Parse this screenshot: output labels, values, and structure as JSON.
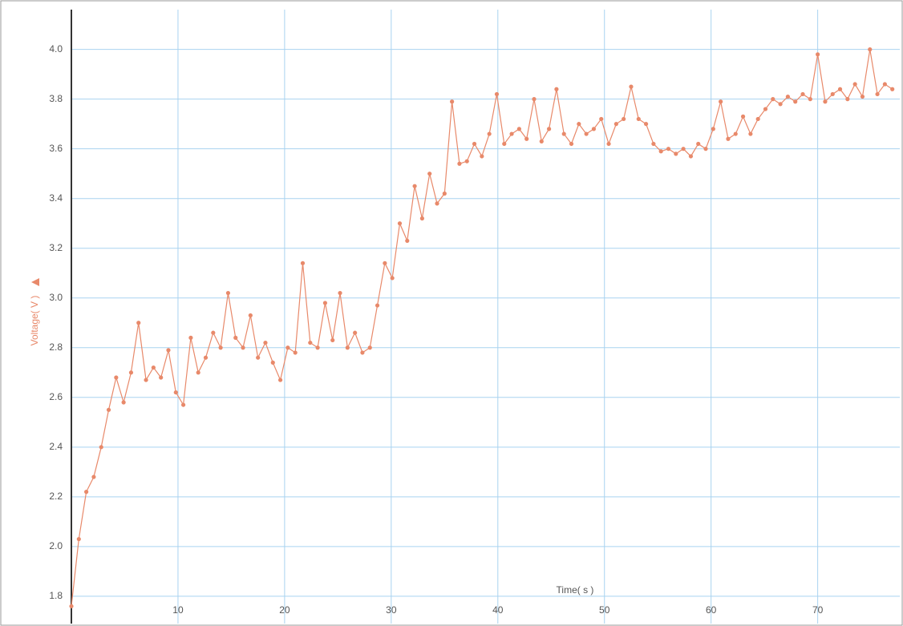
{
  "chart_data": {
    "type": "line",
    "x_label": "Time( s )",
    "y_label": "Voltage( V )",
    "color": "#e8896a",
    "grid": true,
    "xlim": [
      0,
      77.7
    ],
    "ylim": [
      1.69,
      4.16
    ],
    "xticks": [
      10,
      20,
      30,
      40,
      50,
      60,
      70
    ],
    "yticks": [
      1.8,
      {
        "value": 2.0,
        "label": "2.0"
      },
      2.2,
      2.4,
      2.6,
      2.8,
      {
        "value": 3.0,
        "label": "3.0"
      },
      3.2,
      3.4,
      3.6,
      3.8,
      {
        "value": 4.0,
        "label": "4.0"
      }
    ],
    "x": [
      0,
      0.7,
      1.4,
      2.1,
      2.8,
      3.5,
      4.2,
      4.9,
      5.6,
      6.3,
      7,
      7.7,
      8.4,
      9.1,
      9.8,
      10.5,
      11.2,
      11.9,
      12.6,
      13.3,
      14,
      14.7,
      15.4,
      16.1,
      16.8,
      17.5,
      18.2,
      18.9,
      19.6,
      20.3,
      21,
      21.7,
      22.4,
      23.1,
      23.8,
      24.5,
      25.2,
      25.9,
      26.6,
      27.3,
      28,
      28.7,
      29.4,
      30.1,
      30.8,
      31.5,
      32.2,
      32.9,
      33.6,
      34.3,
      35,
      35.7,
      36.4,
      37.1,
      37.8,
      38.5,
      39.2,
      39.9,
      40.6,
      41.3,
      42,
      42.7,
      43.4,
      44.1,
      44.8,
      45.5,
      46.2,
      46.9,
      47.6,
      48.3,
      49,
      49.7,
      50.4,
      51.1,
      51.8,
      52.5,
      53.2,
      53.9,
      54.6,
      55.3,
      56,
      56.7,
      57.4,
      58.1,
      58.8,
      59.5,
      60.2,
      60.9,
      61.6,
      62.3,
      63,
      63.7,
      64.4,
      65.1,
      65.8,
      66.5,
      67.2,
      67.9,
      68.6,
      69.3,
      70,
      70.7,
      71.4,
      72.1,
      72.8,
      73.5,
      74.2,
      74.9,
      75.6,
      76.3,
      77
    ],
    "values": [
      1.76,
      2.03,
      2.22,
      2.28,
      2.4,
      2.55,
      2.68,
      2.58,
      2.7,
      2.9,
      2.67,
      2.72,
      2.68,
      2.79,
      2.62,
      2.57,
      2.84,
      2.7,
      2.76,
      2.86,
      2.8,
      3.02,
      2.84,
      2.8,
      2.93,
      2.76,
      2.82,
      2.74,
      2.67,
      2.8,
      2.78,
      3.14,
      2.82,
      2.8,
      2.98,
      2.83,
      3.02,
      2.8,
      2.86,
      2.78,
      2.8,
      2.97,
      3.14,
      3.08,
      3.3,
      3.23,
      3.45,
      3.32,
      3.5,
      3.38,
      3.42,
      3.79,
      3.54,
      3.55,
      3.62,
      3.57,
      3.66,
      3.82,
      3.62,
      3.66,
      3.68,
      3.64,
      3.8,
      3.63,
      3.68,
      3.84,
      3.66,
      3.62,
      3.7,
      3.66,
      3.68,
      3.72,
      3.62,
      3.7,
      3.72,
      3.85,
      3.72,
      3.7,
      3.62,
      3.59,
      3.6,
      3.58,
      3.6,
      3.57,
      3.62,
      3.6,
      3.68,
      3.79,
      3.64,
      3.66,
      3.73,
      3.66,
      3.72,
      3.76,
      3.8,
      3.78,
      3.81,
      3.79,
      3.82,
      3.8,
      3.98,
      3.79,
      3.82,
      3.84,
      3.8,
      3.86,
      3.81,
      4.0,
      3.82,
      3.86,
      3.84
    ]
  }
}
